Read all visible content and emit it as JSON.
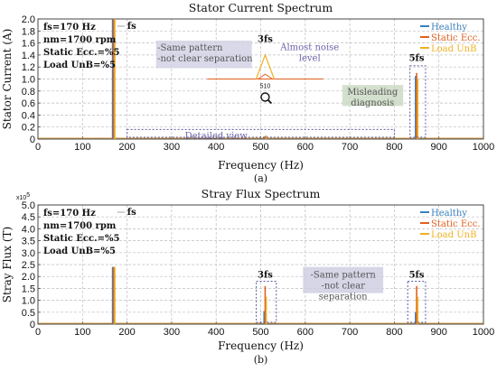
{
  "colors": {
    "healthy": "#3a80bf",
    "static": "#e06020",
    "load": "#f0b020",
    "dotbox": "#5a5aa8",
    "annbg": "#cfcfe3",
    "annbg2": "#c8d8c0"
  },
  "chart_data": [
    {
      "type": "line",
      "title": "Stator Current Spectrum",
      "xlabel": "Frequency (Hz)",
      "ylabel": "Stator Current (A)",
      "xlim": [
        0,
        1000
      ],
      "ylim": [
        0,
        2
      ],
      "xticks": [
        "0",
        "100",
        "200",
        "300",
        "400",
        "500",
        "600",
        "700",
        "800",
        "900",
        "1000"
      ],
      "yticks": [
        "0",
        "0.2",
        "0.4",
        "0.6",
        "0.8",
        "1.0",
        "1.2",
        "1.4",
        "1.6",
        "1.8",
        "2.0"
      ],
      "grid": true,
      "legend_position": "top-right",
      "series": [
        {
          "name": "Healthy",
          "color_key": "healthy",
          "peaks": [
            {
              "x": 170,
              "y": 2.0
            },
            {
              "x": 510,
              "y": 0.03
            },
            {
              "x": 850,
              "y": 1.05
            }
          ]
        },
        {
          "name": "Static Ecc.",
          "color_key": "static",
          "peaks": [
            {
              "x": 170,
              "y": 2.0
            },
            {
              "x": 510,
              "y": 0.05
            },
            {
              "x": 850,
              "y": 1.1
            }
          ]
        },
        {
          "name": "Load UnB",
          "color_key": "load",
          "peaks": [
            {
              "x": 170,
              "y": 2.0
            },
            {
              "x": 510,
              "y": 0.06
            },
            {
              "x": 850,
              "y": 1.0
            }
          ]
        }
      ],
      "params": [
        "fs=170 Hz",
        "nm=1700 rpm",
        "Static Ecc.=%5",
        "Load UnB=%5"
      ],
      "labels": {
        "fs": "fs",
        "h3": "3fs",
        "h5": "5fs",
        "tick510": "510"
      },
      "annotations": {
        "same_pattern": [
          "-Same pattern",
          "-not clear separation"
        ],
        "noise": [
          "Almost noise",
          "level"
        ],
        "detailed": "Detailed view",
        "misleading": [
          "Misleading",
          "diagnosis"
        ]
      },
      "caption": "(a)"
    },
    {
      "type": "line",
      "title": "Stray Flux Spectrum",
      "xlabel": "Frequency (Hz)",
      "ylabel": "Stray Flux (T)",
      "yexp": "x10",
      "yexp_power": "5",
      "xlim": [
        0,
        1000
      ],
      "ylim": [
        0,
        5.0
      ],
      "xticks": [
        "0",
        "100",
        "200",
        "300",
        "400",
        "500",
        "600",
        "700",
        "800",
        "900",
        "1000"
      ],
      "yticks": [
        "0",
        "0.5",
        "1.0",
        "1.5",
        "2.0",
        "2.5",
        "3.0",
        "3.5",
        "4.0",
        "4.5",
        "5.0"
      ],
      "grid": true,
      "legend_position": "top-right",
      "series": [
        {
          "name": "Healthy",
          "color_key": "healthy",
          "peaks": [
            {
              "x": 170,
              "y": 2.4
            },
            {
              "x": 510,
              "y": 0.55
            },
            {
              "x": 850,
              "y": 0.5
            }
          ]
        },
        {
          "name": "Static Ecc.",
          "color_key": "static",
          "peaks": [
            {
              "x": 170,
              "y": 2.4
            },
            {
              "x": 510,
              "y": 1.6
            },
            {
              "x": 850,
              "y": 1.6
            }
          ]
        },
        {
          "name": "Load UnB",
          "color_key": "load",
          "peaks": [
            {
              "x": 170,
              "y": 2.4
            },
            {
              "x": 510,
              "y": 1.15
            },
            {
              "x": 850,
              "y": 1.15
            }
          ]
        }
      ],
      "params": [
        "fs=170 Hz",
        "nm=1700 rpm",
        "Static Ecc.=%5",
        "Load UnB=%5"
      ],
      "labels": {
        "fs": "fs",
        "h3": "3fs",
        "h5": "5fs"
      },
      "annotations": {
        "same_pattern": [
          "-Same pattern",
          "-not clear",
          "separation"
        ]
      },
      "caption": "(b)"
    }
  ]
}
